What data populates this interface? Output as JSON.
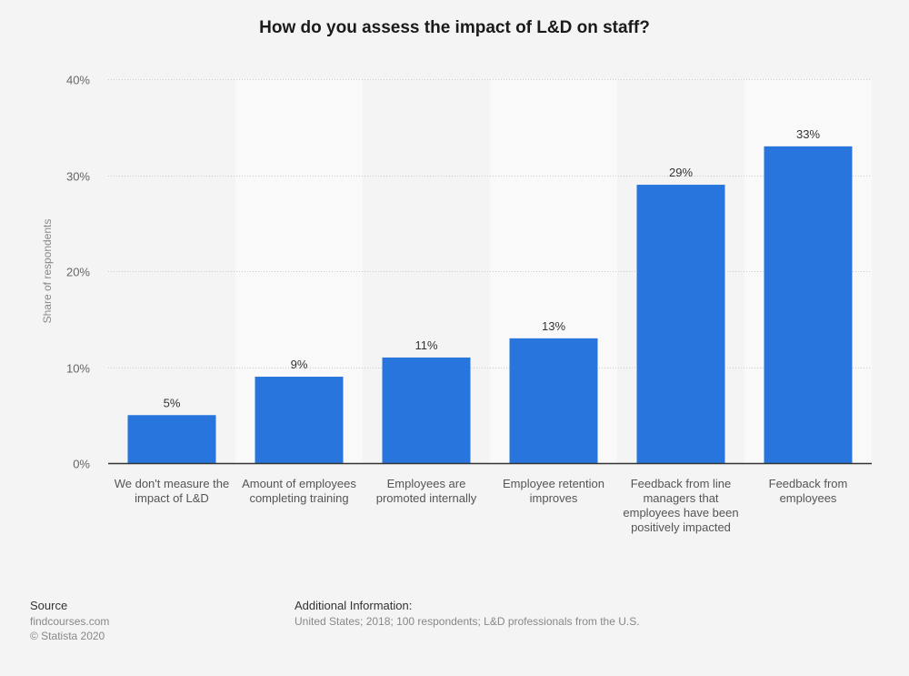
{
  "chart_data": {
    "type": "bar",
    "title": "How do you assess the impact of L&D on staff?",
    "xlabel": "",
    "ylabel": "Share of respondents",
    "ylim": [
      0,
      40
    ],
    "yticks": [
      0,
      10,
      20,
      30,
      40
    ],
    "ytick_labels": [
      "0%",
      "10%",
      "20%",
      "30%",
      "40%"
    ],
    "grid": true,
    "categories": [
      "We don't measure the impact of L&D",
      "Amount of employees completing training",
      "Employees are promoted internally",
      "Employee retention improves",
      "Feedback from line managers that employees have been positively impacted",
      "Feedback from employees"
    ],
    "values": [
      5,
      9,
      11,
      13,
      29,
      33
    ],
    "data_labels": [
      "5%",
      "9%",
      "11%",
      "13%",
      "29%",
      "33%"
    ],
    "bar_color": "#2876dd"
  },
  "footer": {
    "source_heading": "Source",
    "source_lines": [
      "findcourses.com",
      "© Statista 2020"
    ],
    "additional_heading": "Additional Information:",
    "additional_text": "United States; 2018; 100 respondents; L&D professionals from the U.S."
  }
}
